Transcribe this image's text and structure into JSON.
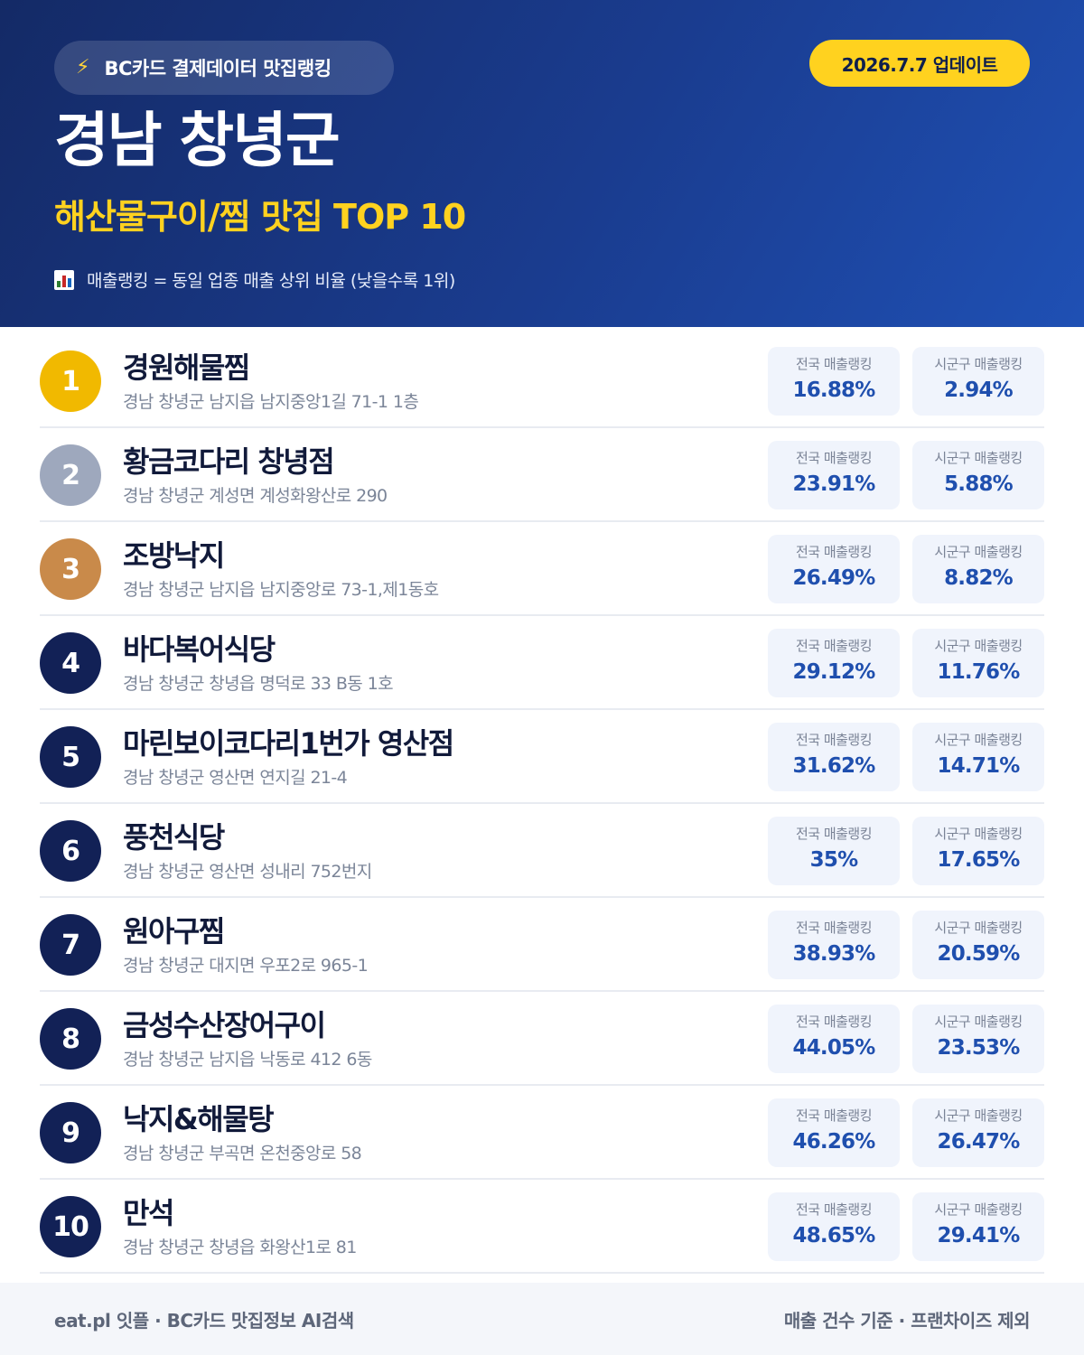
{
  "header": {
    "source": "BC카드 결제데이터 맛집랭킹",
    "update": "2026.7.7 업데이트",
    "region": "경남 창녕군",
    "category": "해산물구이/찜 맛집 TOP 10",
    "legend": "매출랭킹 = 동일 업종 매출 상위 비율 (낮을수록 1위)",
    "icons": {
      "source": "lightning-bolt-icon",
      "legend": "bar-chart-icon"
    },
    "colors": {
      "background": "#1a3c8f",
      "accent": "#ffd21f"
    }
  },
  "labels": {
    "national": "전국 매출랭킹",
    "local": "시군구 매출랭킹"
  },
  "restaurants": [
    {
      "rank": "1",
      "name": "경원해물찜",
      "address": "경남 창녕군 남지읍 남지중앙1길 71-1 1층",
      "national": "16.88%",
      "local": "2.94%"
    },
    {
      "rank": "2",
      "name": "황금코다리 창녕점",
      "address": "경남 창녕군 계성면 계성화왕산로 290",
      "national": "23.91%",
      "local": "5.88%"
    },
    {
      "rank": "3",
      "name": "조방낙지",
      "address": "경남 창녕군 남지읍 남지중앙로 73-1,제1동호",
      "national": "26.49%",
      "local": "8.82%"
    },
    {
      "rank": "4",
      "name": "바다복어식당",
      "address": "경남 창녕군 창녕읍 명덕로 33 B동 1호",
      "national": "29.12%",
      "local": "11.76%"
    },
    {
      "rank": "5",
      "name": "마린보이코다리1번가 영산점",
      "address": "경남 창녕군 영산면 연지길 21-4",
      "national": "31.62%",
      "local": "14.71%"
    },
    {
      "rank": "6",
      "name": "풍천식당",
      "address": "경남 창녕군 영산면 성내리 752번지",
      "national": "35%",
      "local": "17.65%"
    },
    {
      "rank": "7",
      "name": "원아구찜",
      "address": "경남 창녕군 대지면 우포2로 965-1",
      "national": "38.93%",
      "local": "20.59%"
    },
    {
      "rank": "8",
      "name": "금성수산장어구이",
      "address": "경남 창녕군 남지읍 낙동로 412 6동",
      "national": "44.05%",
      "local": "23.53%"
    },
    {
      "rank": "9",
      "name": "낙지&해물탕",
      "address": "경남 창녕군 부곡면 온천중앙로 58",
      "national": "46.26%",
      "local": "26.47%"
    },
    {
      "rank": "10",
      "name": "만석",
      "address": "경남 창녕군 창녕읍 화왕산1로 81",
      "national": "48.65%",
      "local": "29.41%"
    }
  ],
  "rank_colors": {
    "1": "#f1b900",
    "2": "#9ea8bd",
    "3": "#c98a4a",
    "other": "#122156"
  },
  "footer": {
    "left": "eat.pl 잇플 · BC카드 맛집정보 AI검색",
    "right": "매출 건수 기준 · 프랜차이즈 제외"
  }
}
